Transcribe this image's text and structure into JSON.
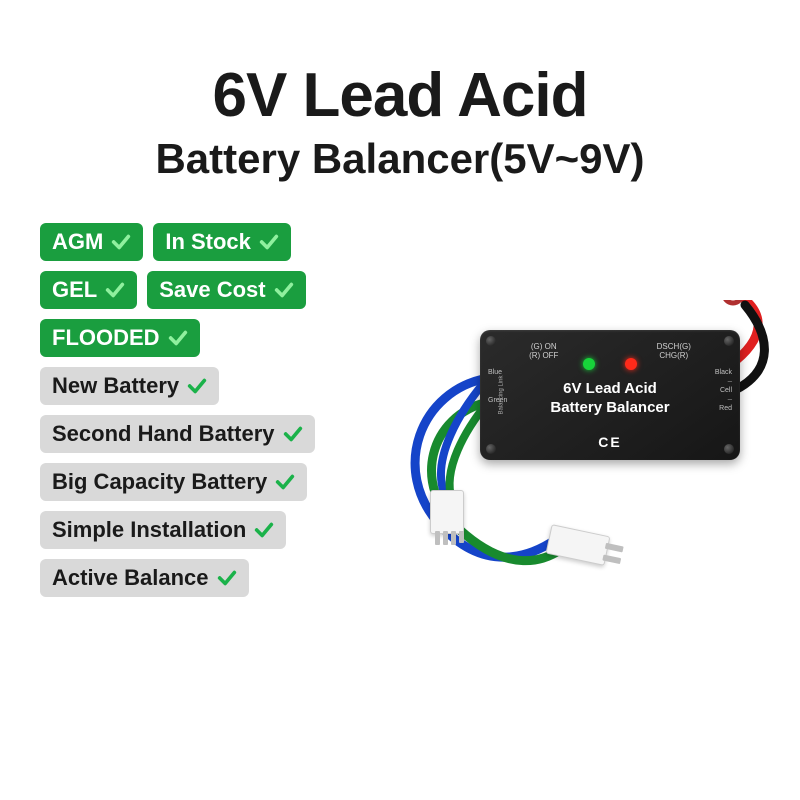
{
  "title": {
    "main": "6V Lead Acid",
    "sub": "Battery Balancer(5V~9V)"
  },
  "badges": {
    "green_rows": [
      [
        {
          "label": "AGM"
        },
        {
          "label": "In Stock"
        }
      ],
      [
        {
          "label": "GEL"
        },
        {
          "label": "Save Cost"
        }
      ],
      [
        {
          "label": "FLOODED"
        }
      ]
    ],
    "gray_rows": [
      {
        "label": "New Battery"
      },
      {
        "label": "Second Hand Battery"
      },
      {
        "label": "Big Capacity Battery"
      },
      {
        "label": "Simple Installation"
      },
      {
        "label": "Active Balance"
      }
    ]
  },
  "colors": {
    "badge_green": "#1a9e3f",
    "badge_gray": "#d9d9d9",
    "check_green": "#1bb24a",
    "wire_red": "#e02020",
    "wire_black": "#111111",
    "wire_blue": "#1544c9",
    "wire_green": "#188a2e",
    "led_green": "#17d43a",
    "led_red": "#ff2a1a"
  },
  "device": {
    "top_left_label": "(G) ON\n(R) OFF",
    "top_right_label": "DSCH(G)\nCHG(R)",
    "title_line1": "6V Lead Acid",
    "title_line2": "Battery Balancer",
    "ce": "CE",
    "left_side_blue": "Blue",
    "left_side_green": "Green",
    "left_side_vertical": "Balancing Link",
    "right_side_black": "Black",
    "right_side_cell": "Cell",
    "right_side_red": "Red"
  }
}
